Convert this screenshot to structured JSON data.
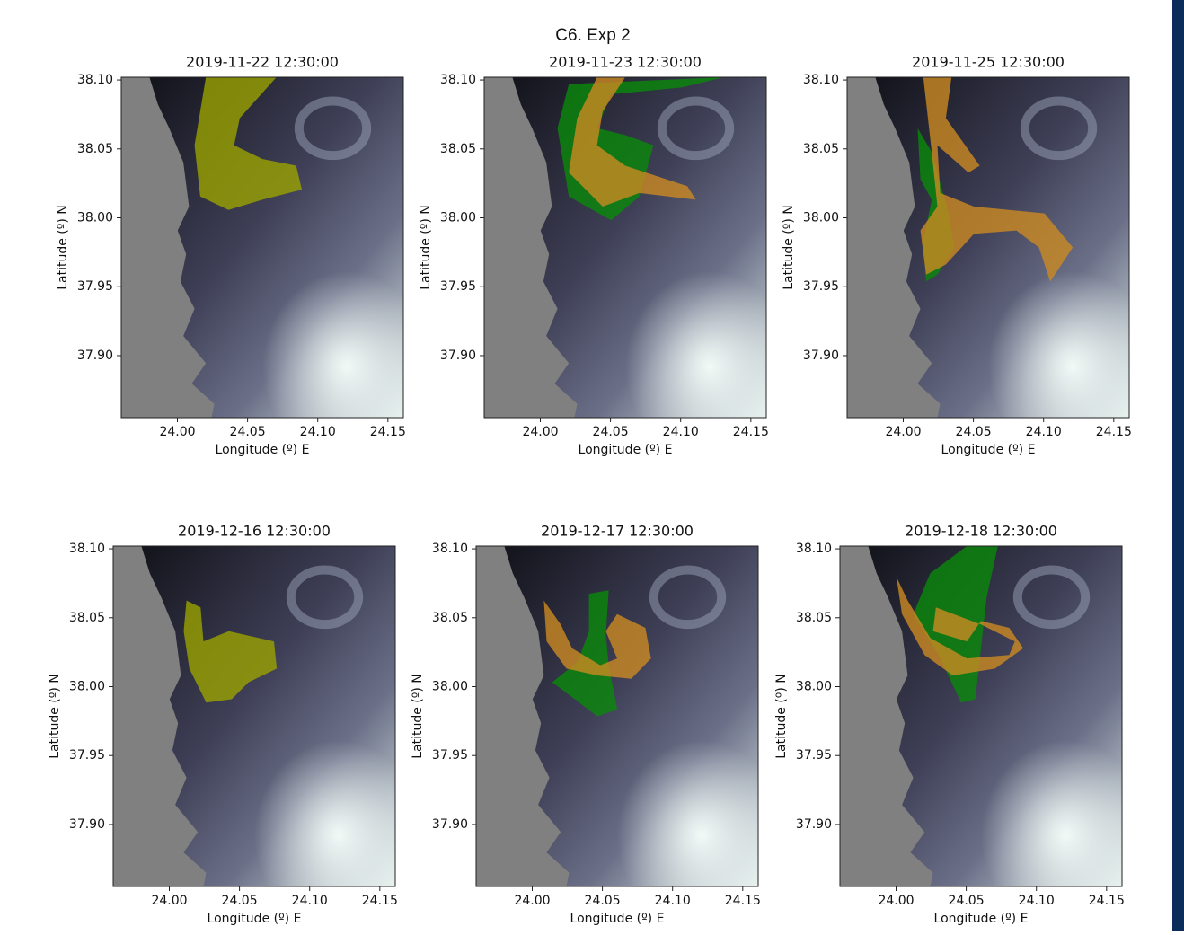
{
  "title": "C6. Exp 2",
  "chart_data": [
    {
      "type": "map",
      "title": "2019-11-22 12:30:00",
      "xlabel": "Longitude (º) E",
      "ylabel": "Latitude (º) N",
      "xlim": [
        23.96,
        24.161
      ],
      "ylim": [
        37.855,
        38.102
      ],
      "xticks": [
        {
          "value": 24,
          "label": "24.00"
        },
        {
          "value": 24.05,
          "label": "24.05"
        },
        {
          "value": 24.1,
          "label": "24.10"
        },
        {
          "value": 24.15,
          "label": "24.15"
        }
      ],
      "yticks": [
        {
          "value": 37.9,
          "label": "37.90"
        },
        {
          "value": 37.95,
          "label": "37.95"
        },
        {
          "value": 38,
          "label": "38.00"
        },
        {
          "value": 38.05,
          "label": "38.05"
        },
        {
          "value": 38.1,
          "label": "38.10"
        }
      ]
    },
    {
      "type": "map",
      "title": "2019-11-23 12:30:00",
      "xlabel": "Longitude (º) E",
      "ylabel": "Latitude (º) N",
      "xlim": [
        23.96,
        24.161
      ],
      "ylim": [
        37.855,
        38.102
      ],
      "xticks": [
        {
          "value": 24,
          "label": "24.00"
        },
        {
          "value": 24.05,
          "label": "24.05"
        },
        {
          "value": 24.1,
          "label": "24.10"
        },
        {
          "value": 24.15,
          "label": "24.15"
        }
      ],
      "yticks": [
        {
          "value": 37.9,
          "label": "37.90"
        },
        {
          "value": 37.95,
          "label": "37.95"
        },
        {
          "value": 38,
          "label": "38.00"
        },
        {
          "value": 38.05,
          "label": "38.05"
        },
        {
          "value": 38.1,
          "label": "38.10"
        }
      ]
    },
    {
      "type": "map",
      "title": "2019-11-25 12:30:00",
      "xlabel": "Longitude (º) E",
      "ylabel": "Latitude (º) N",
      "xlim": [
        23.96,
        24.161
      ],
      "ylim": [
        37.855,
        38.102
      ],
      "xticks": [
        {
          "value": 24,
          "label": "24.00"
        },
        {
          "value": 24.05,
          "label": "24.05"
        },
        {
          "value": 24.1,
          "label": "24.10"
        },
        {
          "value": 24.15,
          "label": "24.15"
        }
      ],
      "yticks": [
        {
          "value": 37.9,
          "label": "37.90"
        },
        {
          "value": 37.95,
          "label": "37.95"
        },
        {
          "value": 38,
          "label": "38.00"
        },
        {
          "value": 38.05,
          "label": "38.05"
        },
        {
          "value": 38.1,
          "label": "38.10"
        }
      ]
    },
    {
      "type": "map",
      "title": "2019-12-16 12:30:00",
      "xlabel": "Longitude (º) E",
      "ylabel": "Latitude (º) N",
      "xlim": [
        23.96,
        24.161
      ],
      "ylim": [
        37.855,
        38.102
      ],
      "xticks": [
        {
          "value": 24,
          "label": "24.00"
        },
        {
          "value": 24.05,
          "label": "24.05"
        },
        {
          "value": 24.1,
          "label": "24.10"
        },
        {
          "value": 24.15,
          "label": "24.15"
        }
      ],
      "yticks": [
        {
          "value": 37.9,
          "label": "37.90"
        },
        {
          "value": 37.95,
          "label": "37.95"
        },
        {
          "value": 38,
          "label": "38.00"
        },
        {
          "value": 38.05,
          "label": "38.05"
        },
        {
          "value": 38.1,
          "label": "38.10"
        }
      ]
    },
    {
      "type": "map",
      "title": "2019-12-17 12:30:00",
      "xlabel": "Longitude (º) E",
      "ylabel": "Latitude (º) N",
      "xlim": [
        23.96,
        24.161
      ],
      "ylim": [
        37.855,
        38.102
      ],
      "xticks": [
        {
          "value": 24,
          "label": "24.00"
        },
        {
          "value": 24.05,
          "label": "24.05"
        },
        {
          "value": 24.1,
          "label": "24.10"
        },
        {
          "value": 24.15,
          "label": "24.15"
        }
      ],
      "yticks": [
        {
          "value": 37.9,
          "label": "37.90"
        },
        {
          "value": 37.95,
          "label": "37.95"
        },
        {
          "value": 38,
          "label": "38.00"
        },
        {
          "value": 38.05,
          "label": "38.05"
        },
        {
          "value": 38.1,
          "label": "38.10"
        }
      ]
    },
    {
      "type": "map",
      "title": "2019-12-18 12:30:00",
      "xlabel": "Longitude (º) E",
      "ylabel": "Latitude (º) N",
      "xlim": [
        23.96,
        24.161
      ],
      "ylim": [
        37.855,
        38.102
      ],
      "xticks": [
        {
          "value": 24,
          "label": "24.00"
        },
        {
          "value": 24.05,
          "label": "24.05"
        },
        {
          "value": 24.1,
          "label": "24.10"
        },
        {
          "value": 24.15,
          "label": "24.15"
        }
      ],
      "yticks": [
        {
          "value": 37.9,
          "label": "37.90"
        },
        {
          "value": 37.95,
          "label": "37.95"
        },
        {
          "value": 38,
          "label": "38.00"
        },
        {
          "value": 38.05,
          "label": "38.05"
        },
        {
          "value": 38.1,
          "label": "38.10"
        }
      ]
    }
  ]
}
